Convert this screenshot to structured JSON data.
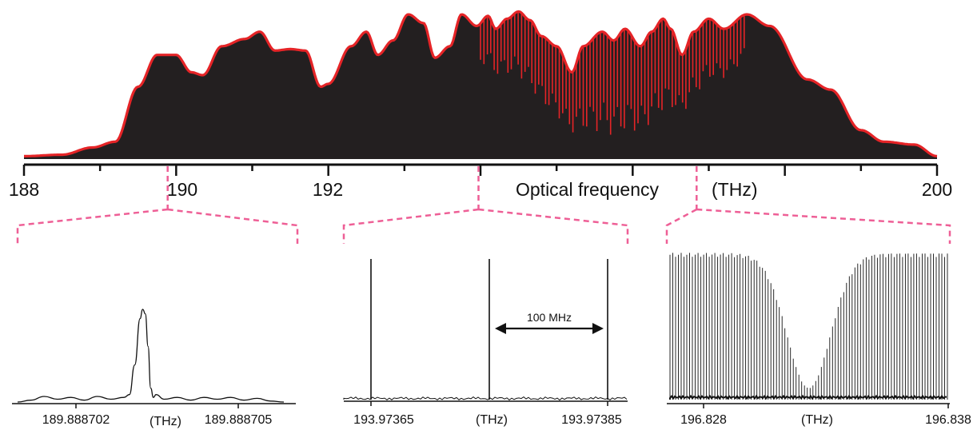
{
  "colors": {
    "spectrum_fill": "#231f20",
    "envelope": "#e52427",
    "zoom_guides": "#ee5f96",
    "axis": "#111111"
  },
  "chart_data": [
    {
      "type": "area",
      "title": "",
      "xlabel": "Optical frequency",
      "xunit": "(THz)",
      "xlim": [
        188,
        200
      ],
      "ticks": [
        188,
        189,
        190,
        191,
        192,
        193,
        194,
        195,
        196,
        197,
        198,
        199,
        200
      ],
      "tick_labels": [
        {
          "x": 188,
          "text": "188"
        },
        {
          "x": 190,
          "text": "190"
        },
        {
          "x": 192,
          "text": "192"
        },
        {
          "x": 200,
          "text": "200"
        }
      ],
      "series": [
        {
          "style": "filled spectrum with red envelope",
          "x": [
            188.0,
            188.5,
            188.9,
            189.2,
            189.5,
            189.75,
            190.0,
            190.2,
            190.35,
            190.6,
            190.9,
            191.1,
            191.3,
            191.5,
            191.7,
            191.9,
            192.0,
            192.3,
            192.5,
            192.65,
            192.85,
            193.05,
            193.25,
            193.4,
            193.6,
            193.75,
            193.95,
            194.1,
            194.2,
            194.35,
            194.5,
            194.65,
            194.8,
            195.0,
            195.2,
            195.35,
            195.6,
            195.75,
            195.9,
            196.1,
            196.25,
            196.4,
            196.5,
            196.65,
            196.8,
            197.0,
            197.2,
            197.5,
            197.8,
            198.3,
            198.6,
            199.0,
            199.3,
            199.7,
            200.0
          ],
          "y": [
            0.02,
            0.03,
            0.08,
            0.12,
            0.5,
            0.72,
            0.72,
            0.6,
            0.58,
            0.78,
            0.83,
            0.88,
            0.75,
            0.76,
            0.75,
            0.5,
            0.52,
            0.78,
            0.88,
            0.72,
            0.82,
            1.0,
            0.94,
            0.7,
            0.78,
            1.0,
            0.92,
            0.99,
            0.9,
            0.97,
            1.02,
            0.96,
            0.85,
            0.78,
            0.6,
            0.78,
            0.88,
            0.82,
            0.9,
            0.78,
            0.88,
            0.97,
            0.9,
            0.72,
            0.88,
            0.97,
            0.9,
            1.0,
            0.92,
            0.55,
            0.48,
            0.2,
            0.12,
            0.1,
            0.02
          ],
          "comb_region": [
            194.0,
            197.5
          ]
        }
      ]
    },
    {
      "type": "line",
      "title": "",
      "xlabel": "(THz)",
      "tick_labels": [
        "189.888702",
        "189.888705"
      ],
      "xlim": [
        189.888702,
        189.888705
      ],
      "zoom_of": 189.888,
      "series": [
        {
          "x": [
            0.0,
            0.05,
            0.1,
            0.15,
            0.2,
            0.25,
            0.3,
            0.35,
            0.4,
            0.42,
            0.44,
            0.46,
            0.47,
            0.48,
            0.49,
            0.5,
            0.51,
            0.52,
            0.55,
            0.6,
            0.65,
            0.7,
            0.75,
            0.8,
            0.85,
            0.9,
            0.95,
            1.0
          ],
          "y": [
            0.0,
            0.02,
            0.06,
            0.03,
            0.05,
            0.02,
            0.06,
            0.03,
            0.05,
            0.08,
            0.4,
            0.9,
            1.0,
            0.95,
            0.6,
            0.15,
            0.05,
            0.08,
            0.03,
            0.05,
            0.02,
            0.05,
            0.03,
            0.05,
            0.02,
            0.04,
            0.01,
            0.0
          ]
        }
      ]
    },
    {
      "type": "line",
      "title": "",
      "xlabel": "(THz)",
      "tick_labels": [
        "193.97365",
        "193.97385"
      ],
      "xlim": [
        193.97365,
        193.97385
      ],
      "zoom_of": 193.974,
      "annotation": "100 MHz",
      "series": [
        {
          "peaks_x": [
            193.97365,
            193.97375,
            193.97385
          ],
          "peaks_y": [
            1.0,
            1.0,
            1.0
          ],
          "noise_floor": 0.02
        }
      ]
    },
    {
      "type": "line",
      "title": "",
      "xlabel": "(THz)",
      "tick_labels": [
        "196.828",
        "196.838"
      ],
      "xlim": [
        196.828,
        196.838
      ],
      "zoom_of": 196.84,
      "series": [
        {
          "style": "dense comb lines",
          "line_count": 100,
          "dip_center_fraction": 0.5,
          "dip_min_height": 0.08,
          "max_height": 1.0
        }
      ]
    }
  ]
}
